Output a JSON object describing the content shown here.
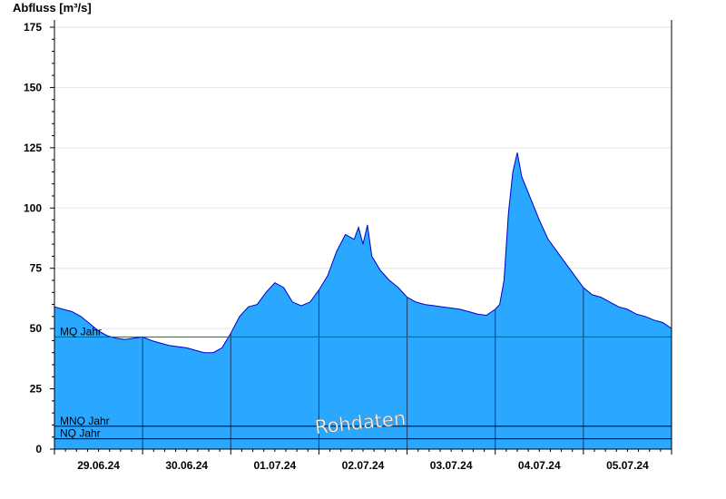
{
  "chart_data": {
    "type": "area",
    "ylabel": "Abfluss [m³/s]",
    "ylim": [
      0,
      178
    ],
    "yticks": [
      0,
      25,
      50,
      75,
      100,
      125,
      150,
      175
    ],
    "xlim_days": [
      0,
      7
    ],
    "x_tick_labels": [
      "29.06.24",
      "30.06.24",
      "01.07.24",
      "02.07.24",
      "03.07.24",
      "04.07.24",
      "05.07.24"
    ],
    "grid": "horizontal",
    "colors": {
      "fill": "#2aa7ff",
      "line": "#0000cc",
      "mq_line": "#008000",
      "ref_line": "#000000",
      "divider": "#1a3a6a"
    },
    "reference_lines": [
      {
        "label": "MQ Jahr",
        "value": 46.5
      },
      {
        "label": "MNQ Jahr",
        "value": 9.5
      },
      {
        "label": "NQ Jahr",
        "value": 4.3
      }
    ],
    "watermark": "Rohdaten",
    "series": [
      {
        "x": [
          0,
          0.1,
          0.2,
          0.3,
          0.4,
          0.5,
          0.6,
          0.7,
          0.8,
          0.9,
          1.0,
          1.1,
          1.2,
          1.3,
          1.4,
          1.5,
          1.6,
          1.7,
          1.8,
          1.9,
          2.0,
          2.1,
          2.2,
          2.3,
          2.4,
          2.5,
          2.6,
          2.7,
          2.8,
          2.9,
          3.0,
          3.1,
          3.2,
          3.3,
          3.4,
          3.45,
          3.5,
          3.55,
          3.6,
          3.7,
          3.8,
          3.9,
          4.0,
          4.1,
          4.2,
          4.3,
          4.4,
          4.5,
          4.6,
          4.7,
          4.8,
          4.9,
          5.0,
          5.05,
          5.1,
          5.15,
          5.2,
          5.25,
          5.3,
          5.4,
          5.5,
          5.6,
          5.7,
          5.8,
          5.9,
          6.0,
          6.1,
          6.2,
          6.3,
          6.4,
          6.5,
          6.6,
          6.7,
          6.8,
          6.9,
          7.0
        ],
        "values": [
          59,
          58,
          57,
          55,
          52,
          49,
          47,
          46,
          45.5,
          46,
          46.5,
          45,
          44,
          43,
          42.5,
          42,
          41,
          40,
          40,
          42,
          48,
          55,
          59,
          60,
          65,
          69,
          67,
          61,
          59.5,
          61,
          66,
          72,
          82,
          89,
          87,
          92,
          85,
          93,
          80,
          74,
          70,
          67,
          63,
          61,
          60,
          59.5,
          59,
          58.5,
          58,
          57,
          56,
          55.5,
          58,
          60,
          70,
          98,
          115,
          123,
          113,
          104,
          95,
          87,
          82,
          77,
          72,
          67,
          64,
          63,
          61,
          59,
          58,
          56,
          55,
          53.5,
          52.5,
          50
        ]
      }
    ]
  }
}
